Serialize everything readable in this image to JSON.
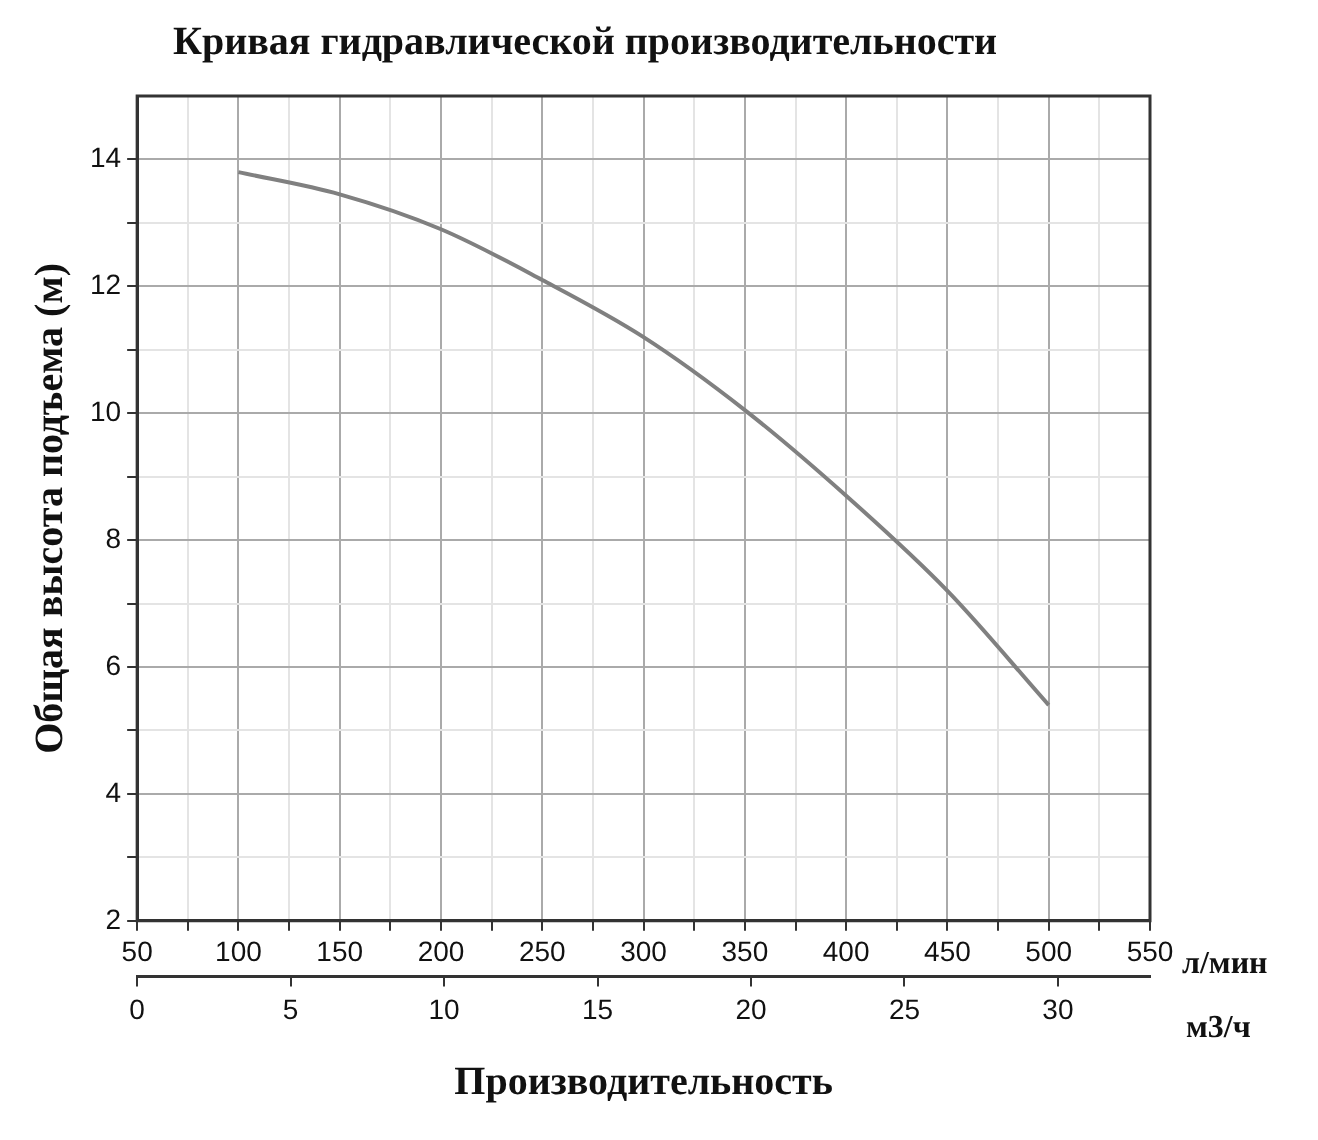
{
  "chart_data": {
    "type": "line",
    "title": "Кривая гидравлической производительности",
    "ylabel": "Общая высота подъема (м)",
    "xlabel": "л/мин",
    "x2label": "м3/ч",
    "annotations": [
      "Производительность"
    ],
    "x": [
      100,
      150,
      200,
      250,
      300,
      350,
      400,
      450,
      500
    ],
    "series": [
      {
        "color": "#808080",
        "values": [
          13.8,
          13.45,
          12.9,
          12.1,
          11.2,
          10.05,
          8.7,
          7.2,
          5.4
        ]
      }
    ],
    "xlim": [
      50,
      550
    ],
    "xticks": [
      50,
      {
        "value": 75,
        "label": null
      },
      100,
      {
        "value": 125,
        "label": null
      },
      150,
      {
        "value": 175,
        "label": null
      },
      200,
      {
        "value": 225,
        "label": null
      },
      250,
      {
        "value": 275,
        "label": null
      },
      300,
      {
        "value": 325,
        "label": null
      },
      350,
      {
        "value": 375,
        "label": null
      },
      400,
      {
        "value": 425,
        "label": null
      },
      450,
      {
        "value": 475,
        "label": null
      },
      500,
      {
        "value": 525,
        "label": null
      },
      550
    ],
    "x2lim": [
      0,
      33
    ],
    "x2ticks": [
      0,
      5,
      10,
      15,
      20,
      25,
      30
    ],
    "ylim": [
      2,
      15
    ],
    "yticks": [
      2,
      {
        "value": 3,
        "label": null
      },
      4,
      {
        "value": 5,
        "label": null
      },
      6,
      {
        "value": 7,
        "label": null
      },
      8,
      {
        "value": 9,
        "label": null
      },
      10,
      {
        "value": 11,
        "label": null
      },
      12,
      {
        "value": 13,
        "label": null
      },
      14
    ],
    "grid": true,
    "legend": false,
    "marker": "none",
    "line_style": "solid"
  }
}
